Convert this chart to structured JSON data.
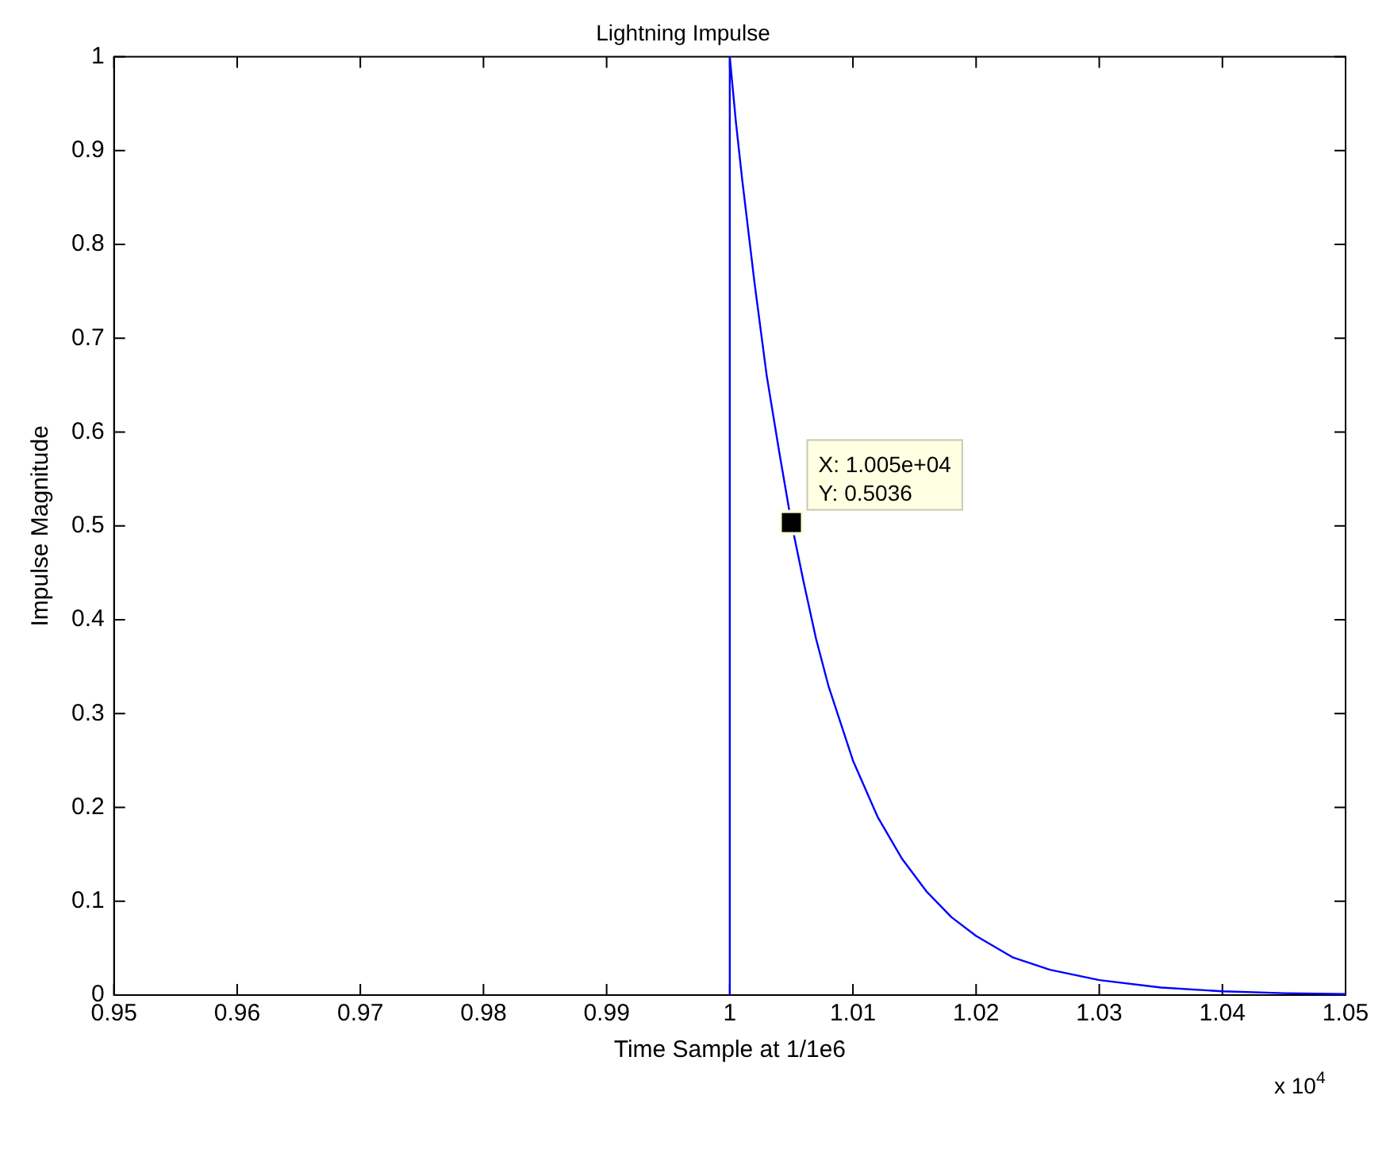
{
  "chart_data": {
    "type": "line",
    "title": "Lightning Impulse",
    "xlabel": "Time Sample at 1/1e6",
    "ylabel": "Impulse Magnitude",
    "series": [
      {
        "color": "#0000ff",
        "x": [
          1,
          1,
          1.0005,
          1.001,
          1.002,
          1.003,
          1.004,
          1.005,
          1.006,
          1.007,
          1.008,
          1.009,
          1.01,
          1.012,
          1.014,
          1.016,
          1.018,
          1.02,
          1.023,
          1.026,
          1.03,
          1.035,
          1.04,
          1.045,
          1.05
        ],
        "values": [
          0,
          1,
          0.93,
          0.87,
          0.76,
          0.66,
          0.58,
          0.5036,
          0.44,
          0.38,
          0.33,
          0.29,
          0.25,
          0.19,
          0.145,
          0.11,
          0.083,
          0.063,
          0.04,
          0.027,
          0.016,
          0.008,
          0.004,
          0.002,
          0.001
        ]
      }
    ],
    "xlim": [
      0.95,
      1.05
    ],
    "xticks": [
      0.95,
      0.96,
      0.97,
      0.98,
      0.99,
      1,
      1.01,
      1.02,
      1.03,
      1.04,
      1.05
    ],
    "ylim": [
      0,
      1
    ],
    "yticks": [
      0,
      0.1,
      0.2,
      0.3,
      0.4,
      0.5,
      0.6,
      0.7,
      0.8,
      0.9,
      1
    ],
    "grid": false,
    "legend": false,
    "marker": "none",
    "line_style": "solid",
    "annotations": [
      {
        "text": "X: 1.005e+04\nY: 0.5036",
        "x": 1.005,
        "y": 0.5036
      },
      "x 10$^{4}$"
    ]
  }
}
